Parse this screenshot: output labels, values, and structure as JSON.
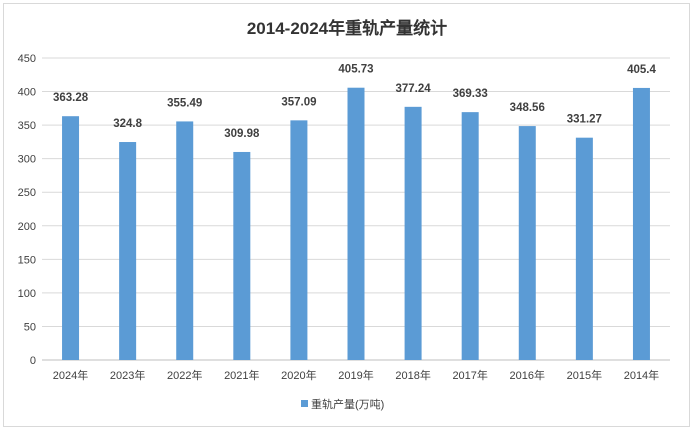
{
  "chart_data": {
    "type": "bar",
    "title": "2014-2024年重轨产量统计",
    "categories": [
      "2024年",
      "2023年",
      "2022年",
      "2021年",
      "2020年",
      "2019年",
      "2018年",
      "2017年",
      "2016年",
      "2015年",
      "2014年"
    ],
    "series": [
      {
        "name": "重轨产量(万吨)",
        "values": [
          363.28,
          324.8,
          355.49,
          309.98,
          357.09,
          405.73,
          377.24,
          369.33,
          348.56,
          331.27,
          405.4
        ],
        "color": "#5B9BD5"
      }
    ],
    "data_labels": [
      "363.28",
      "324.8",
      "355.49",
      "309.98",
      "357.09",
      "405.73",
      "377.24",
      "369.33",
      "348.56",
      "331.27",
      "405.4"
    ],
    "ylim": [
      0,
      450
    ],
    "yticks": [
      0,
      50,
      100,
      150,
      200,
      250,
      300,
      350,
      400,
      450
    ],
    "xlabel": "",
    "ylabel": "",
    "grid": true,
    "legend": "bottom"
  }
}
